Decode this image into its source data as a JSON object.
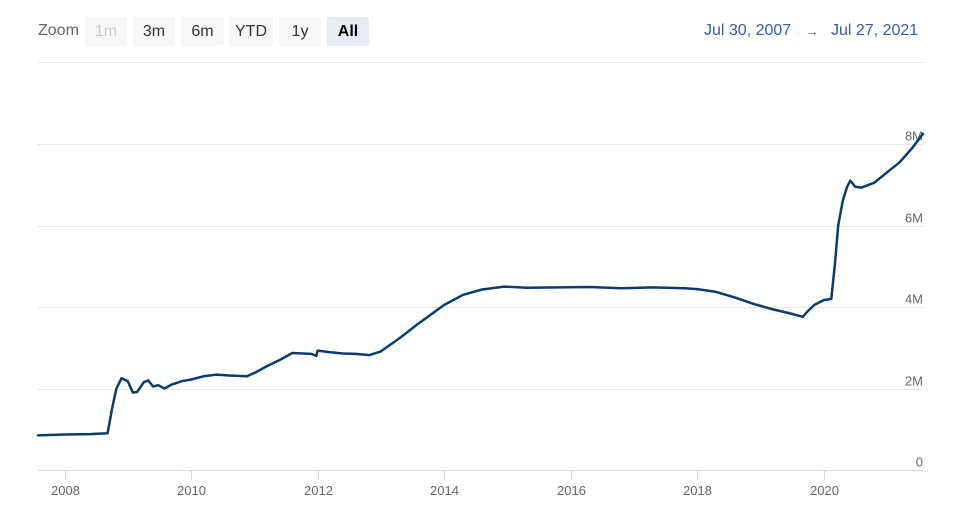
{
  "toolbar": {
    "zoom_label": "Zoom",
    "buttons": [
      {
        "label": "1m",
        "state": "disabled"
      },
      {
        "label": "3m",
        "state": "normal"
      },
      {
        "label": "6m",
        "state": "normal"
      },
      {
        "label": "YTD",
        "state": "normal"
      },
      {
        "label": "1y",
        "state": "normal"
      },
      {
        "label": "All",
        "state": "selected"
      }
    ],
    "range_from": "Jul 30, 2007",
    "range_arrow": "→",
    "range_to": "Jul 27, 2021"
  },
  "colors": {
    "series_line": "#0b3d6b",
    "range_text": "#335cad",
    "grid": "#e6e6e6",
    "axis_text": "#666666"
  },
  "chart_data": {
    "type": "line",
    "title": "",
    "xlabel": "",
    "ylabel": "",
    "x_range": [
      2007.58,
      2021.57
    ],
    "ylim": [
      0,
      8000000
    ],
    "y_ticks": [
      0,
      2000000,
      4000000,
      6000000,
      8000000
    ],
    "y_tick_labels": [
      "0",
      "2M",
      "4M",
      "6M",
      "8M"
    ],
    "x_ticks": [
      2008,
      2010,
      2012,
      2014,
      2016,
      2018,
      2020
    ],
    "x_tick_labels": [
      "2008",
      "2010",
      "2012",
      "2014",
      "2016",
      "2018",
      "2020"
    ],
    "grid": true,
    "legend": "none",
    "series": [
      {
        "x": [
          2007.58,
          2008.0,
          2008.4,
          2008.68,
          2008.75,
          2008.82,
          2008.9,
          2009.0,
          2009.08,
          2009.15,
          2009.25,
          2009.32,
          2009.4,
          2009.48,
          2009.58,
          2009.7,
          2009.85,
          2010.0,
          2010.2,
          2010.4,
          2010.6,
          2010.88,
          2011.0,
          2011.2,
          2011.4,
          2011.6,
          2011.9,
          2011.98,
          2012.0,
          2012.2,
          2012.4,
          2012.6,
          2012.82,
          2013.0,
          2013.3,
          2013.6,
          2014.0,
          2014.3,
          2014.6,
          2014.95,
          2015.3,
          2015.8,
          2016.3,
          2016.8,
          2017.3,
          2017.8,
          2018.0,
          2018.3,
          2018.6,
          2018.9,
          2019.2,
          2019.5,
          2019.67,
          2019.75,
          2019.85,
          2020.0,
          2020.12,
          2020.18,
          2020.23,
          2020.3,
          2020.37,
          2020.42,
          2020.5,
          2020.6,
          2020.8,
          2021.0,
          2021.2,
          2021.4,
          2021.57
        ],
        "y": [
          850000,
          870000,
          880000,
          900000,
          1500000,
          2000000,
          2250000,
          2180000,
          1900000,
          1920000,
          2150000,
          2200000,
          2050000,
          2080000,
          2000000,
          2100000,
          2180000,
          2220000,
          2300000,
          2340000,
          2320000,
          2300000,
          2380000,
          2550000,
          2700000,
          2870000,
          2850000,
          2800000,
          2930000,
          2890000,
          2860000,
          2850000,
          2820000,
          2910000,
          3240000,
          3600000,
          4050000,
          4300000,
          4430000,
          4500000,
          4470000,
          4480000,
          4490000,
          4460000,
          4480000,
          4460000,
          4440000,
          4370000,
          4230000,
          4070000,
          3940000,
          3830000,
          3760000,
          3900000,
          4050000,
          4170000,
          4200000,
          5100000,
          6000000,
          6600000,
          6950000,
          7100000,
          6950000,
          6930000,
          7050000,
          7300000,
          7550000,
          7900000,
          8250000
        ]
      }
    ]
  }
}
